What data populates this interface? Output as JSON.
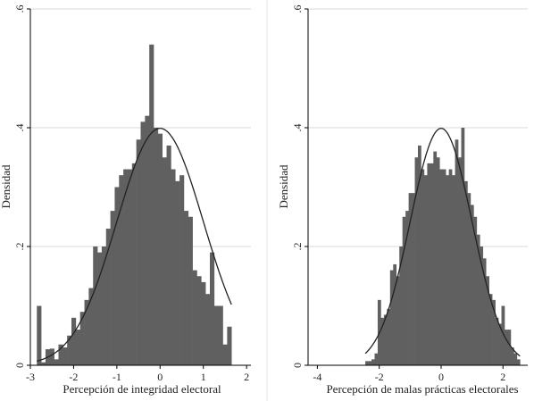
{
  "chart_data": [
    {
      "type": "bar",
      "xlabel": "Percepción de integridad electoral",
      "ylabel": "Densidad",
      "xlim": [
        -3.0,
        2.1
      ],
      "ylim": [
        0,
        0.6
      ],
      "xticks": [
        -3,
        -2,
        -1,
        0,
        1,
        2
      ],
      "yticks": [
        0,
        0.2,
        0.4,
        0.6
      ],
      "ytick_labels": [
        "0",
        ".2",
        ".4",
        ".6"
      ],
      "grid": true,
      "overlay": "normal density curve",
      "bins": {
        "start": -2.85,
        "width": 0.1,
        "values": [
          0.1,
          0.005,
          0.027,
          0.028,
          0.01,
          0.035,
          0.03,
          0.05,
          0.08,
          0.06,
          0.09,
          0.11,
          0.13,
          0.2,
          0.19,
          0.2,
          0.23,
          0.26,
          0.3,
          0.32,
          0.33,
          0.33,
          0.34,
          0.38,
          0.41,
          0.42,
          0.54,
          0.4,
          0.39,
          0.35,
          0.37,
          0.33,
          0.31,
          0.32,
          0.26,
          0.25,
          0.16,
          0.15,
          0.14,
          0.12,
          0.19,
          0.1,
          0.1,
          0.035,
          0.065
        ]
      }
    },
    {
      "type": "bar",
      "xlabel": "Percepción de malas prácticas electorales",
      "ylabel": "Densidad",
      "xlim": [
        -4.3,
        2.8
      ],
      "ylim": [
        0,
        0.6
      ],
      "xticks": [
        -4,
        -2,
        0,
        2
      ],
      "yticks": [
        0,
        0.2,
        0.4,
        0.6
      ],
      "ytick_labels": [
        "0",
        ".2",
        ".4",
        ".6"
      ],
      "grid": true,
      "overlay": "normal density curve",
      "bins": {
        "start": -2.45,
        "width": 0.1,
        "values": [
          0.007,
          0.007,
          0.01,
          0.02,
          0.11,
          0.08,
          0.085,
          0.095,
          0.16,
          0.17,
          0.15,
          0.2,
          0.25,
          0.26,
          0.29,
          0.29,
          0.35,
          0.37,
          0.33,
          0.32,
          0.34,
          0.34,
          0.36,
          0.35,
          0.33,
          0.33,
          0.32,
          0.33,
          0.32,
          0.38,
          0.35,
          0.4,
          0.31,
          0.29,
          0.27,
          0.25,
          0.22,
          0.2,
          0.18,
          0.15,
          0.12,
          0.11,
          0.08,
          0.07,
          0.1,
          0.06,
          0.06,
          0.03,
          0.02,
          0.01
        ]
      }
    }
  ]
}
